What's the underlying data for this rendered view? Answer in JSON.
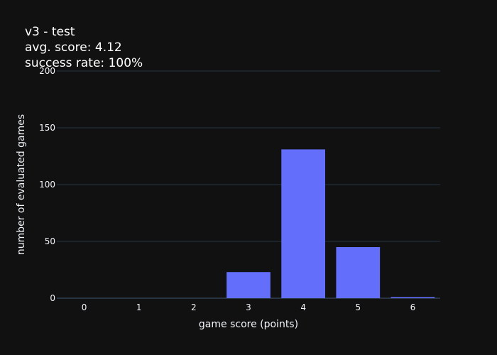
{
  "chart_data": {
    "type": "bar",
    "title_lines": [
      "v3 - test",
      "avg. score: 4.12",
      "success rate: 100%"
    ],
    "xlabel": "game score (points)",
    "ylabel": "number of evaluated games",
    "categories": [
      "0",
      "1",
      "2",
      "3",
      "4",
      "5",
      "6"
    ],
    "values": [
      0,
      0,
      0,
      23,
      131,
      45,
      1
    ],
    "ylim": [
      0,
      200
    ],
    "yticks": [
      0,
      50,
      100,
      150,
      200
    ],
    "grid": true,
    "legend": "none",
    "colors": {
      "bar": "#636efa",
      "background": "#111111",
      "grid": "#283442",
      "text": "#f2f5fa"
    }
  }
}
